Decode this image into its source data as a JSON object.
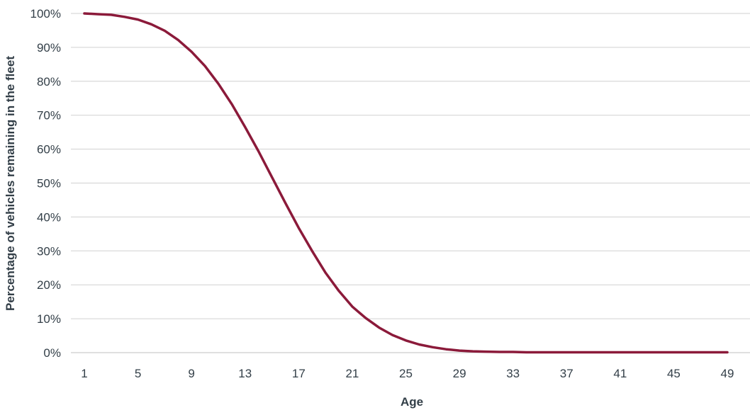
{
  "chart_data": {
    "type": "line",
    "title": "",
    "xlabel": "Age",
    "ylabel": "Percentage of vehicles remaining in the fleet",
    "xlim": [
      1,
      49
    ],
    "ylim": [
      0,
      100
    ],
    "x_ticks": [
      "1",
      "5",
      "9",
      "13",
      "17",
      "21",
      "25",
      "29",
      "33",
      "37",
      "41",
      "45",
      "49"
    ],
    "y_ticks": [
      "0%",
      "10%",
      "20%",
      "30%",
      "40%",
      "50%",
      "60%",
      "70%",
      "80%",
      "90%",
      "100%"
    ],
    "grid": "horizontal",
    "colors": {
      "line": "#8b1a3a"
    },
    "series": [
      {
        "x": [
          1,
          2,
          3,
          4,
          5,
          6,
          7,
          8,
          9,
          10,
          11,
          12,
          13,
          14,
          15,
          16,
          17,
          18,
          19,
          20,
          21,
          22,
          23,
          24,
          25,
          26,
          27,
          28,
          29,
          30,
          31,
          32,
          33,
          34,
          35,
          36,
          37,
          38,
          39,
          40,
          41,
          42,
          43,
          44,
          45,
          46,
          47,
          48,
          49
        ],
        "values": [
          100,
          99.8,
          99.6,
          99.0,
          98.2,
          96.8,
          94.9,
          92.2,
          88.7,
          84.5,
          79.3,
          73.3,
          66.5,
          59.4,
          51.8,
          44.2,
          36.8,
          30.0,
          23.6,
          18.2,
          13.6,
          10.2,
          7.4,
          5.2,
          3.6,
          2.4,
          1.6,
          1.0,
          0.6,
          0.4,
          0.3,
          0.2,
          0.2,
          0.1,
          0.1,
          0.1,
          0.1,
          0.1,
          0.1,
          0.1,
          0.1,
          0.1,
          0.1,
          0.1,
          0.1,
          0.1,
          0.1,
          0.1,
          0.1
        ]
      }
    ]
  }
}
